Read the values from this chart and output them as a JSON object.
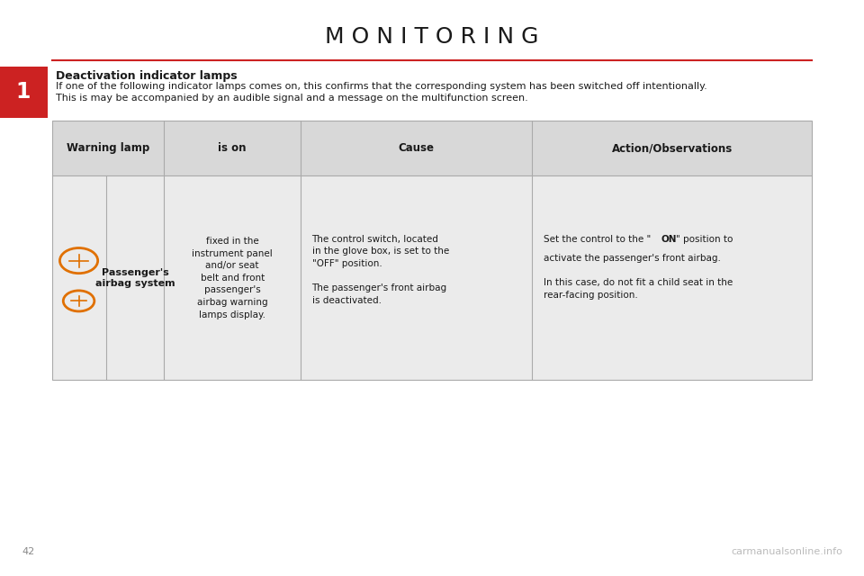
{
  "title": "M O N I T O R I N G",
  "title_fontsize": 18,
  "title_color": "#1a1a1a",
  "red_line_color": "#cc2222",
  "section_label": "1",
  "section_label_bg": "#cc2222",
  "section_heading": "Deactivation indicator lamps",
  "intro_text_line1": "If one of the following indicator lamps comes on, this confirms that the corresponding system has been switched off intentionally.",
  "intro_text_line2": "This is may be accompanied by an audible signal and a message on the multifunction screen.",
  "page_number": "42",
  "watermark": "carmanualsonline.info",
  "table": {
    "header_bg": "#d8d8d8",
    "row_bg": "#ebebeb",
    "border_color": "#aaaaaa",
    "headers": [
      "Warning lamp",
      "is on",
      "Cause",
      "Action/Observations"
    ],
    "icon_color": "#e07000",
    "cell_ison": "fixed in the\ninstrument panel\nand/or seat\nbelt and front\npassenger's\nairbag warning\nlamps display."
  },
  "bg_color": "#ffffff",
  "text_color": "#1a1a1a"
}
